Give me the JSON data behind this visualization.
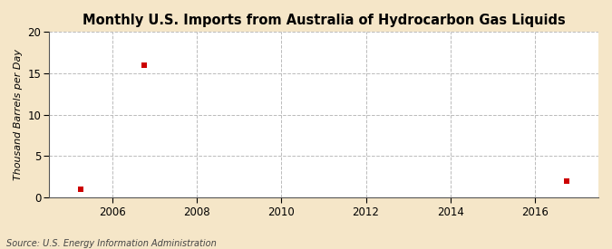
{
  "title": "Monthly U.S. Imports from Australia of Hydrocarbon Gas Liquids",
  "ylabel": "Thousand Barrels per Day",
  "source": "Source: U.S. Energy Information Administration",
  "figure_color": "#f5e6c8",
  "plot_color": "#ffffff",
  "data_x": [
    2005.25,
    2006.75,
    2016.75
  ],
  "data_y": [
    1.0,
    16.0,
    2.0
  ],
  "marker_color": "#cc0000",
  "marker_size": 4,
  "xlim": [
    2004.5,
    2017.5
  ],
  "ylim": [
    0,
    20
  ],
  "xticks": [
    2006,
    2008,
    2010,
    2012,
    2014,
    2016
  ],
  "yticks": [
    0,
    5,
    10,
    15,
    20
  ],
  "grid_color": "#bbbbbb",
  "grid_linestyle": "--",
  "title_fontsize": 10.5,
  "label_fontsize": 8,
  "tick_fontsize": 8.5,
  "source_fontsize": 7
}
